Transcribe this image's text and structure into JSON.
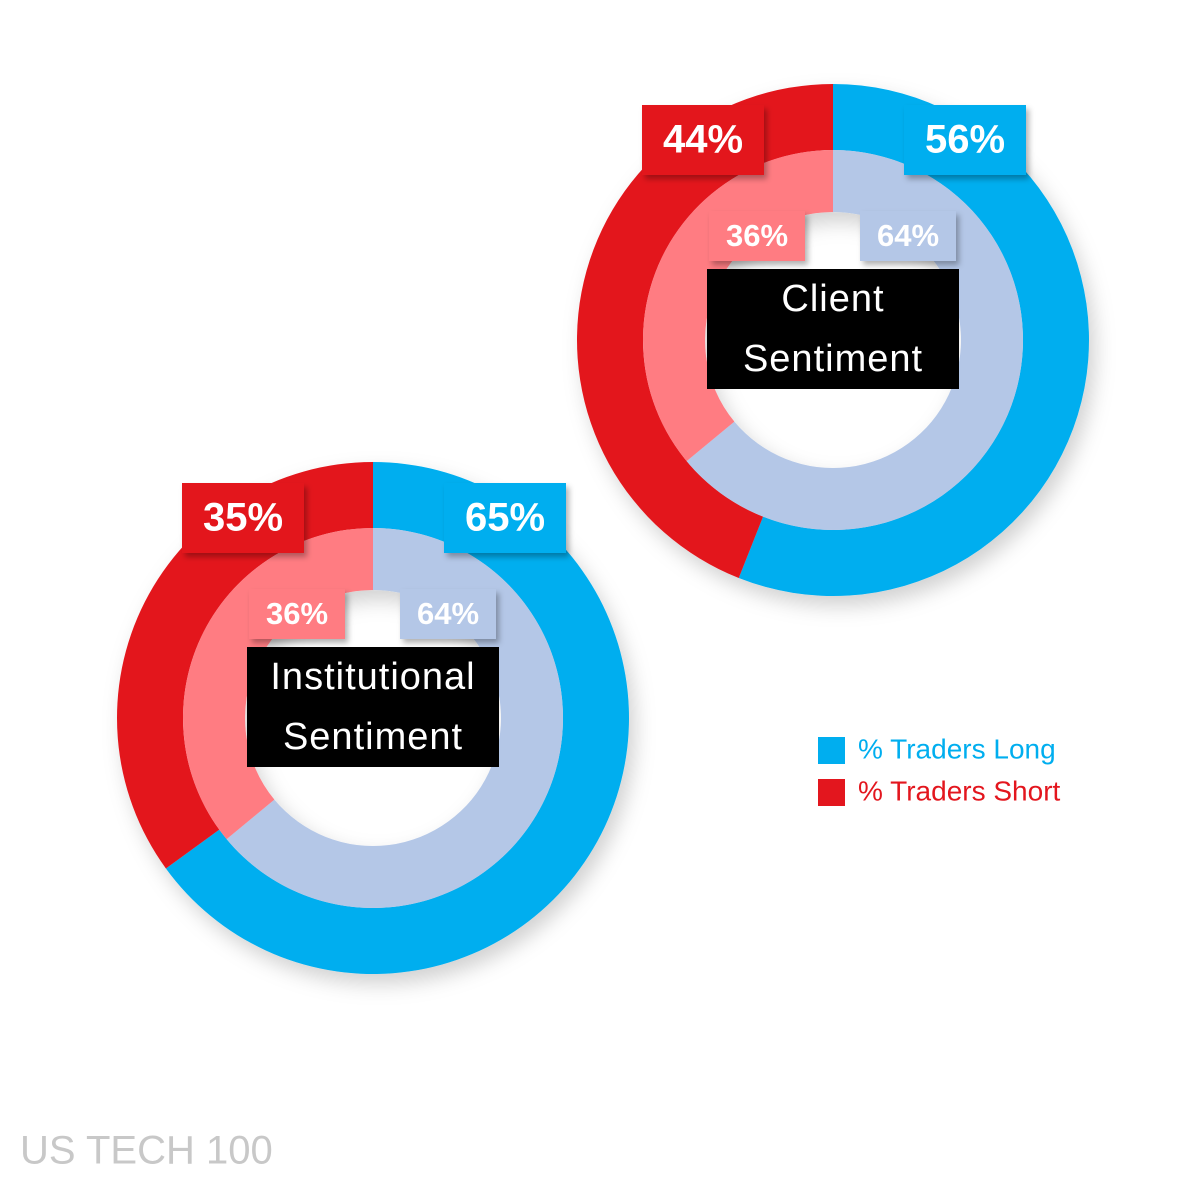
{
  "chart_data": [
    {
      "type": "donut",
      "title": "Client Sentiment",
      "series": [
        {
          "name": "% Traders Long",
          "color": "#00aeef",
          "inner_color": "#b4c7e7",
          "values": [
            56,
            64
          ],
          "value_labels": [
            "56%",
            "64%"
          ]
        },
        {
          "name": "% Traders Short",
          "color": "#e3161e",
          "inner_color": "#ff7b82",
          "values": [
            44,
            36
          ],
          "value_labels": [
            "44%",
            "36%"
          ]
        }
      ]
    },
    {
      "type": "donut",
      "title": "Institutional Sentiment",
      "series": [
        {
          "color": "#00aeef",
          "inner_color": "#b4c7e7",
          "values": [
            65,
            64
          ],
          "value_labels": [
            "65%",
            "64%"
          ]
        },
        {
          "color": "#e3161e",
          "inner_color": "#ff7b82",
          "values": [
            35,
            36
          ],
          "value_labels": [
            "35%",
            "36%"
          ]
        }
      ]
    }
  ],
  "footer": "US TECH 100"
}
